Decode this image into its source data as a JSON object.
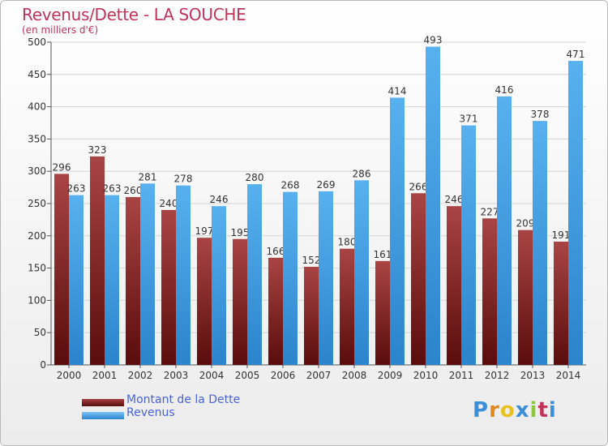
{
  "title": "Revenus/Dette - LA SOUCHE",
  "subtitle": "(en milliers d'€)",
  "logo": "Proxiti",
  "chart_data": {
    "type": "bar",
    "categories": [
      "2000",
      "2001",
      "2002",
      "2003",
      "2004",
      "2005",
      "2006",
      "2007",
      "2008",
      "2009",
      "2010",
      "2011",
      "2012",
      "2013",
      "2014"
    ],
    "series": [
      {
        "name": "Montant de la Dette",
        "color": "#7a1c1c",
        "values": [
          296,
          323,
          260,
          240,
          197,
          195,
          166,
          152,
          180,
          161,
          266,
          246,
          227,
          209,
          191
        ],
        "labels": [
          "296",
          "323",
          "260",
          "240",
          "197",
          "195",
          "166",
          "152",
          "180",
          "161",
          "266",
          "246",
          "227",
          "209",
          "191"
        ]
      },
      {
        "name": "Revenus",
        "color": "#4da6e8",
        "values": [
          263,
          263,
          281,
          278,
          246,
          280,
          268,
          269,
          286,
          414,
          493,
          371,
          416,
          378,
          471
        ],
        "labels": [
          "263",
          "263",
          "281",
          "278",
          "246",
          "280",
          "268",
          "269",
          "286",
          "414",
          "493",
          "371",
          "416",
          "378",
          "471"
        ]
      }
    ],
    "ylim": [
      0,
      500
    ],
    "yticks": [
      0,
      50,
      100,
      150,
      200,
      250,
      300,
      350,
      400,
      450,
      500
    ],
    "grid": true,
    "legend_position": "bottom-left"
  }
}
